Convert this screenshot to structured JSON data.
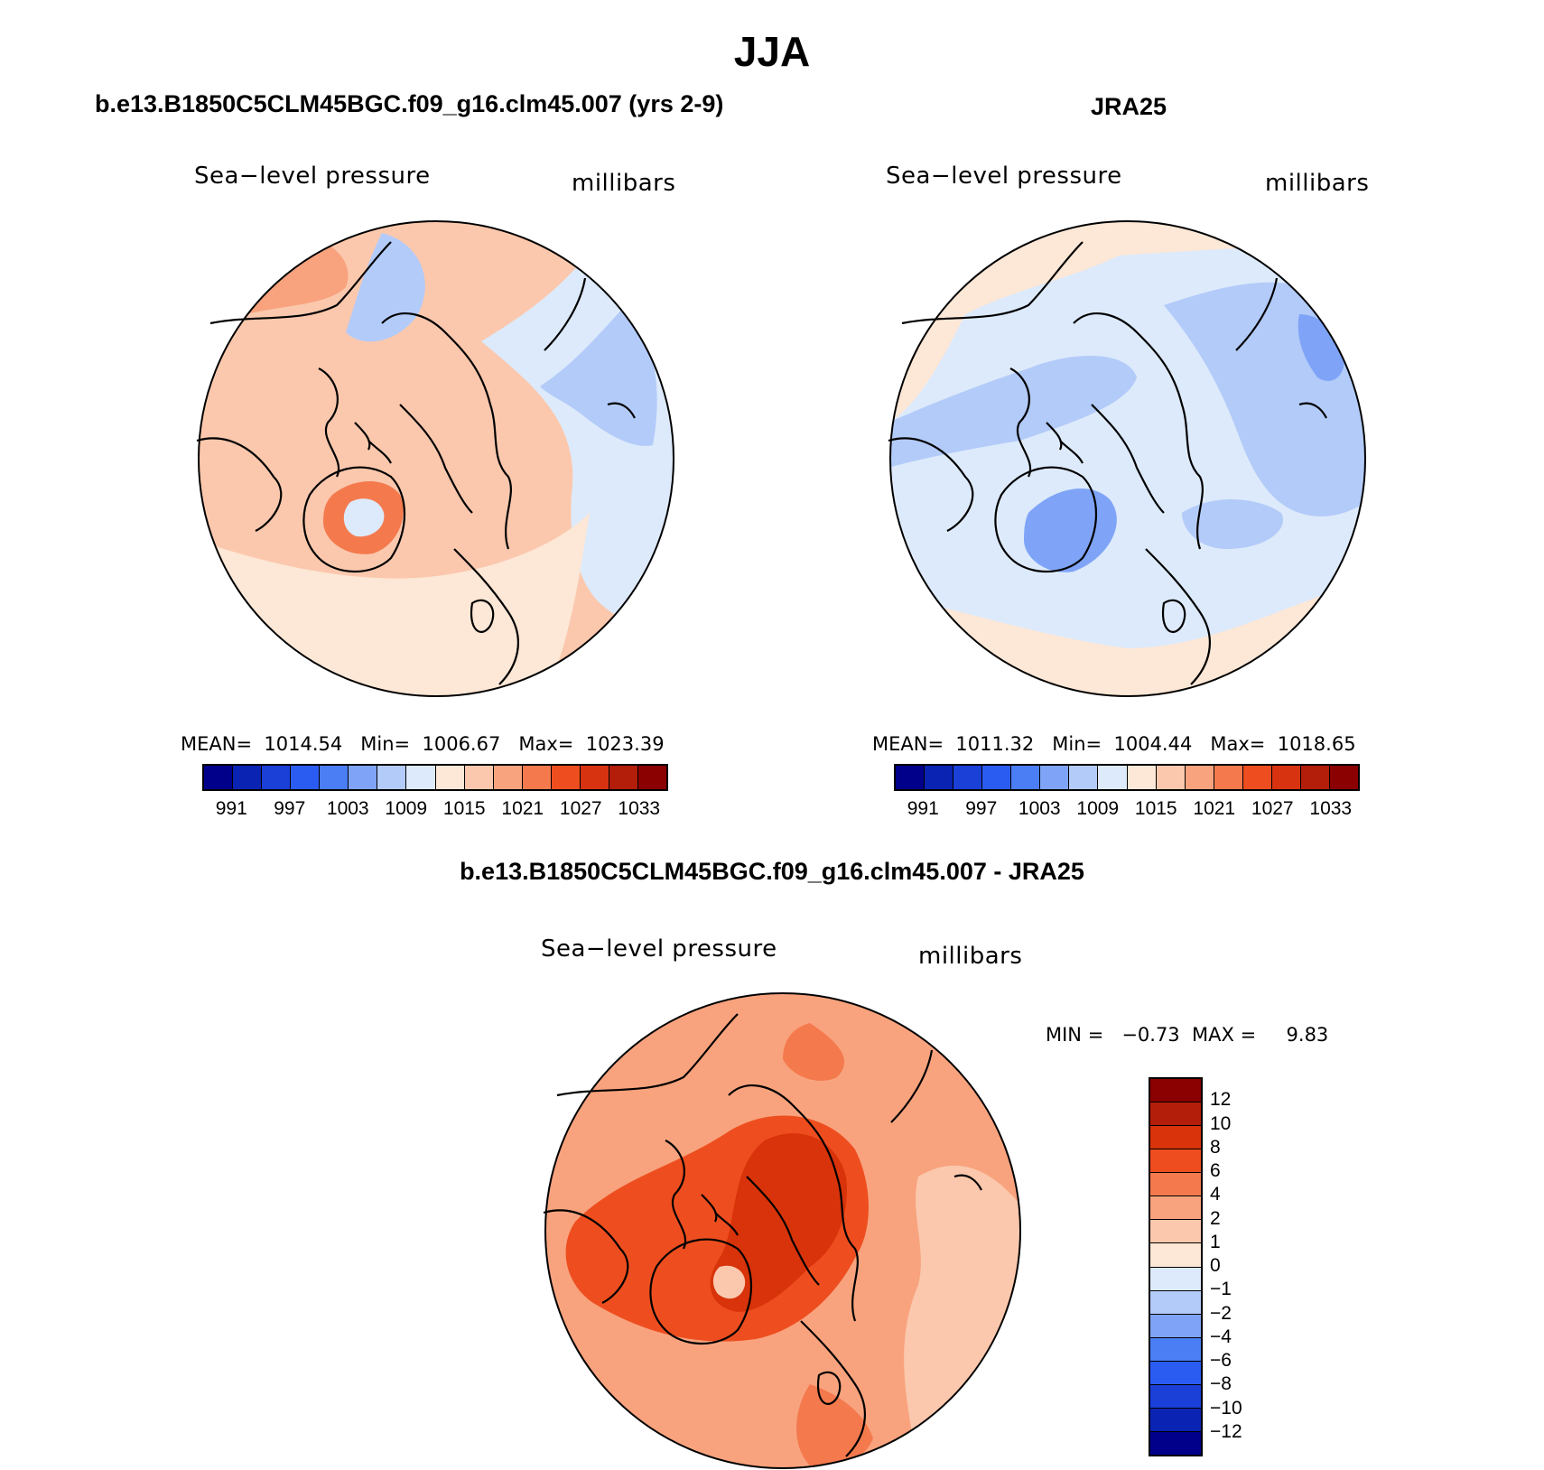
{
  "title": "JJA",
  "panels": {
    "model": {
      "title": "b.e13.B1850C5CLM45BGC.f09_g16.clm45.007 (yrs 2-9)",
      "variable": "Sea−level pressure",
      "units": "millibars",
      "stats": "MEAN=  1014.54   Min=  1006.67   Max=  1023.39"
    },
    "obs": {
      "title": "JRA25",
      "variable": "Sea−level pressure",
      "units": "millibars",
      "stats": "MEAN=  1011.32   Min=  1004.44   Max=  1018.65"
    },
    "diff": {
      "title": "b.e13.B1850C5CLM45BGC.f09_g16.clm45.007 - JRA25",
      "variable": "Sea−level pressure",
      "units": "millibars",
      "stats": "MIN =   −0.73  MAX =     9.83"
    }
  },
  "colorbars": {
    "abs": {
      "colors": [
        "#00008b",
        "#0a23b3",
        "#1a40d8",
        "#2b5cf2",
        "#4b7ef5",
        "#7fa4f7",
        "#b3cbf9",
        "#ddeafb",
        "#fde7d6",
        "#fbc8ad",
        "#f8a37e",
        "#f47a4e",
        "#ee4e1f",
        "#d83310",
        "#b21e0a",
        "#8b0000"
      ],
      "labels": [
        "991",
        "997",
        "1003",
        "1009",
        "1015",
        "1021",
        "1027",
        "1033"
      ]
    },
    "diff": {
      "colors": [
        "#8b0000",
        "#b21e0a",
        "#d8330a",
        "#ee4e1f",
        "#f47a4e",
        "#f8a37e",
        "#fbc8ad",
        "#fde7d6",
        "#ddeafb",
        "#b3cbf9",
        "#7fa4f7",
        "#4b7ef5",
        "#2b5cf2",
        "#1a40d8",
        "#0a23b3",
        "#00008b"
      ],
      "labels": [
        "12",
        "10",
        "8",
        "6",
        "4",
        "2",
        "1",
        "0",
        "−1",
        "−2",
        "−4",
        "−6",
        "−8",
        "−10",
        "−12"
      ]
    }
  },
  "map_fields": {
    "model": {
      "background": "#fbc8ad",
      "regions": [
        {
          "name": "north-pacific-blue-light",
          "color": "#ddeafb"
        },
        {
          "name": "north-pacific-blue-mid",
          "color": "#b3cbf9"
        },
        {
          "name": "atlantic-pale",
          "color": "#fde7d6"
        },
        {
          "name": "labrador-high",
          "color": "#f8a37e"
        },
        {
          "name": "greenland-high-core",
          "color": "#f47a4e"
        }
      ]
    },
    "obs": {
      "background": "#ddeafb",
      "regions": [
        {
          "name": "pacific-blue-mid",
          "color": "#b3cbf9"
        },
        {
          "name": "pacific-blue-core",
          "color": "#7fa4f7"
        },
        {
          "name": "rim-pale",
          "color": "#fde7d6"
        }
      ]
    },
    "diff": {
      "background": "#f8a37e",
      "regions": [
        {
          "name": "outer-pale",
          "color": "#fbc8ad"
        },
        {
          "name": "central-high",
          "color": "#f47a4e"
        },
        {
          "name": "central-core",
          "color": "#ee4e1f"
        },
        {
          "name": "greenland-core",
          "color": "#d8330a"
        }
      ]
    }
  }
}
